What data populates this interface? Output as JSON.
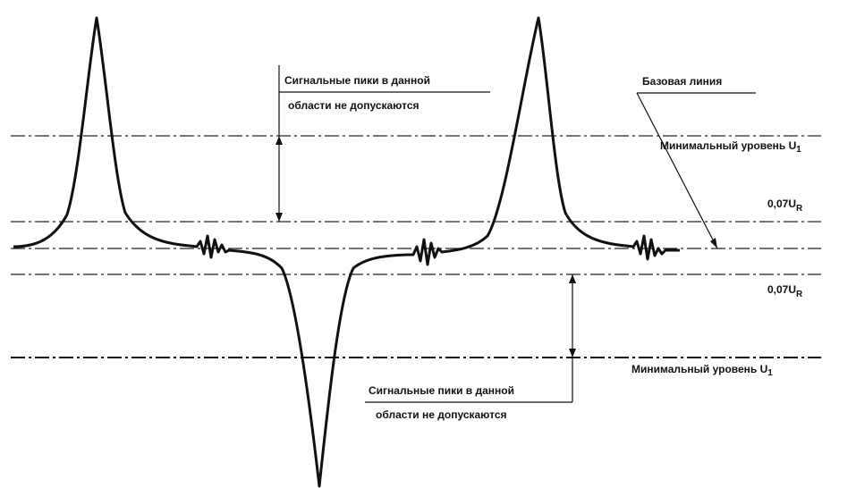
{
  "labels": {
    "region_top_line1": "Сигнальные пики в данной",
    "region_top_line2": "области не допускаются",
    "region_bottom_line1": "Сигнальные пики в данной",
    "region_bottom_line2": "области не допускаются",
    "baseline": "Базовая линия",
    "min_level_top": "Минимальный уровень U",
    "min_level_top_sub": "1",
    "upper_threshold": "0,07U",
    "upper_threshold_sub": "R",
    "lower_threshold": "0,07U",
    "lower_threshold_sub": "R",
    "min_level_bottom": "Минимальный уровень U",
    "min_level_bottom_sub": "1"
  }
}
